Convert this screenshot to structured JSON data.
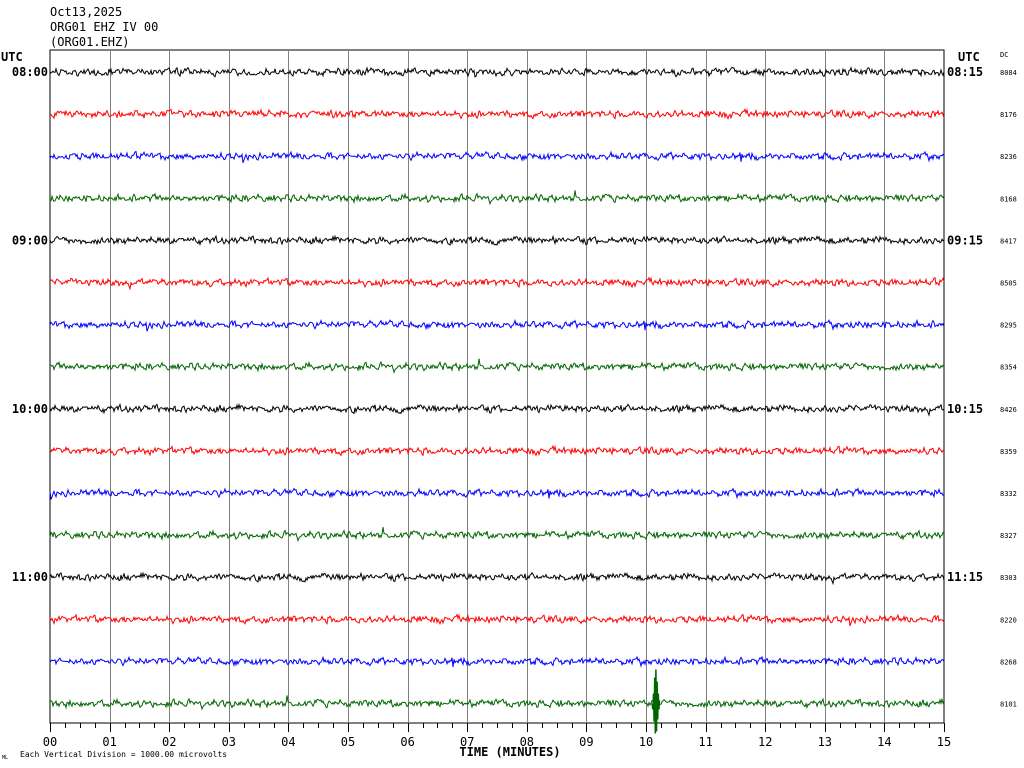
{
  "header": {
    "date": "Oct13,2025",
    "station": "ORG01 EHZ IV 00",
    "channel": "(ORG01.EHZ)"
  },
  "left_label": "UTC",
  "right_label": "UTC",
  "dc_label": "DC",
  "footer": {
    "scale_note": "Each Vertical Division = 1000.00 microvolts",
    "corner_mark": "ML"
  },
  "colors": {
    "trace_cycle": [
      "#000000",
      "#ff0000",
      "#0000ff",
      "#006400"
    ],
    "grid": "#000000",
    "background": "#ffffff"
  },
  "chart_data": {
    "type": "line",
    "title": "ORG01 EHZ IV 00",
    "xlabel": "TIME (MINUTES)",
    "ylabel": "",
    "x_range": [
      0,
      15
    ],
    "x_ticks": [
      "00",
      "01",
      "02",
      "03",
      "04",
      "05",
      "06",
      "07",
      "08",
      "09",
      "10",
      "11",
      "12",
      "13",
      "14",
      "15"
    ],
    "grid": true,
    "rows": [
      {
        "left": "08:00",
        "right": "08:15",
        "dc": "8084"
      },
      {
        "left": "",
        "right": "",
        "dc": "8176"
      },
      {
        "left": "",
        "right": "",
        "dc": "8236"
      },
      {
        "left": "",
        "right": "",
        "dc": "8168"
      },
      {
        "left": "09:00",
        "right": "09:15",
        "dc": "8417"
      },
      {
        "left": "",
        "right": "",
        "dc": "8505"
      },
      {
        "left": "",
        "right": "",
        "dc": "8295"
      },
      {
        "left": "",
        "right": "",
        "dc": "8354"
      },
      {
        "left": "10:00",
        "right": "10:15",
        "dc": "8426"
      },
      {
        "left": "",
        "right": "",
        "dc": "8359"
      },
      {
        "left": "",
        "right": "",
        "dc": "8332"
      },
      {
        "left": "",
        "right": "",
        "dc": "8327"
      },
      {
        "left": "11:00",
        "right": "11:15",
        "dc": "8303"
      },
      {
        "left": "",
        "right": "",
        "dc": "8220"
      },
      {
        "left": "",
        "right": "",
        "dc": "8268"
      },
      {
        "left": "",
        "right": "",
        "dc": "8101"
      }
    ],
    "events": [
      {
        "row": 15,
        "minute": 10.15,
        "amplitude": "large"
      }
    ]
  }
}
